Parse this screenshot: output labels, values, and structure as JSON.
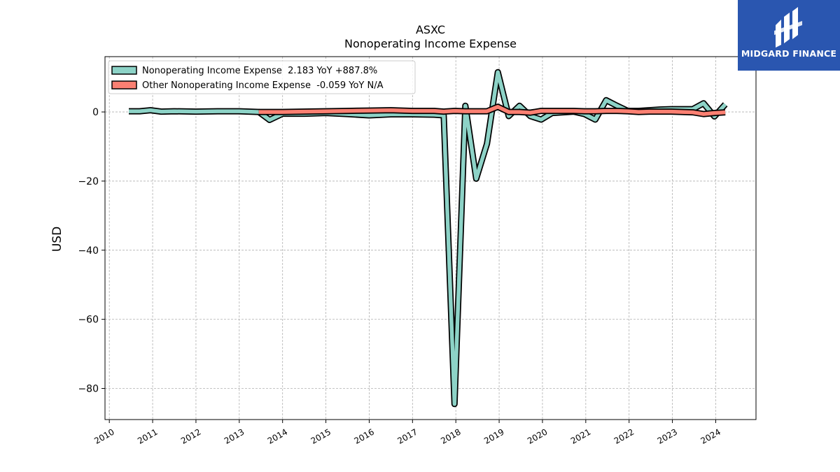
{
  "chart_data": {
    "type": "line",
    "title": "ASXC",
    "subtitle": "Nonoperating Income Expense",
    "ylabel": "USD",
    "xlabel": "",
    "xlim": [
      2009.9,
      2024.93
    ],
    "ylim": [
      -89,
      16
    ],
    "yticks": [
      0,
      -20,
      -40,
      -60,
      -80
    ],
    "ytick_labels": [
      "0",
      "−20",
      "−40",
      "−60",
      "−80"
    ],
    "xticks": [
      2010,
      2011,
      2012,
      2013,
      2014,
      2015,
      2016,
      2017,
      2018,
      2019,
      2020,
      2021,
      2022,
      2023,
      2024
    ],
    "xtick_labels": [
      "2010",
      "2011",
      "2012",
      "2013",
      "2014",
      "2015",
      "2016",
      "2017",
      "2018",
      "2019",
      "2020",
      "2021",
      "2022",
      "2023",
      "2024"
    ],
    "grid": true,
    "legend_position": "top-left",
    "series": [
      {
        "name": "Nonoperating Income Expense",
        "legend_label": "Nonoperating Income Expense  2.183 YoY +887.8%",
        "color": "#8dd3c7",
        "x": [
          2010.45,
          2010.7,
          2010.95,
          2011.2,
          2011.5,
          2012,
          2012.5,
          2013,
          2013.45,
          2013.7,
          2014.0,
          2014.5,
          2015,
          2015.5,
          2016,
          2016.5,
          2017,
          2017.5,
          2017.72,
          2017.97,
          2018.22,
          2018.47,
          2018.72,
          2018.97,
          2019.22,
          2019.47,
          2019.72,
          2019.97,
          2020.22,
          2020.47,
          2020.72,
          2020.97,
          2021.22,
          2021.47,
          2021.72,
          2021.97,
          2022.22,
          2022.47,
          2022.72,
          2022.97,
          2023.22,
          2023.47,
          2023.72,
          2023.97,
          2024.22
        ],
        "values": [
          0.2,
          0.2,
          0.5,
          0.1,
          0.2,
          0.1,
          0.2,
          0.2,
          0.0,
          -2.3,
          -0.5,
          -0.5,
          -0.3,
          -0.6,
          -1.0,
          -0.7,
          -0.7,
          -0.8,
          -1.0,
          -84.5,
          1.8,
          -19.3,
          -9.2,
          11.5,
          -1.2,
          1.8,
          -1.2,
          -2.2,
          -0.3,
          -0.1,
          0.1,
          -0.6,
          -2.2,
          3.4,
          1.8,
          0.3,
          0.3,
          0.5,
          0.7,
          0.8,
          0.8,
          0.8,
          2.5,
          -1.3,
          2.2
        ]
      },
      {
        "name": "Other Nonoperating Income Expense",
        "legend_label": "Other Nonoperating Income Expense  -0.059 YoY N/A",
        "color": "#fb8072",
        "x": [
          2013.45,
          2014.0,
          2014.5,
          2015,
          2015.5,
          2016,
          2016.5,
          2017,
          2017.5,
          2017.72,
          2017.97,
          2018.22,
          2018.47,
          2018.72,
          2018.97,
          2019.22,
          2019.47,
          2019.72,
          2019.97,
          2020.22,
          2020.47,
          2020.72,
          2020.97,
          2021.22,
          2021.47,
          2021.72,
          2021.97,
          2022.22,
          2022.47,
          2022.72,
          2022.97,
          2023.22,
          2023.47,
          2023.72,
          2023.97,
          2024.22
        ],
        "values": [
          0.0,
          0.0,
          0.1,
          0.2,
          0.3,
          0.4,
          0.5,
          0.3,
          0.3,
          0.1,
          0.3,
          0.2,
          0.2,
          0.2,
          1.5,
          0.0,
          0.0,
          -0.2,
          0.3,
          0.3,
          0.3,
          0.3,
          0.2,
          0.2,
          0.3,
          0.3,
          0.2,
          0.0,
          0.1,
          0.1,
          0.1,
          0.0,
          -0.1,
          -0.6,
          -0.3,
          -0.1
        ]
      }
    ]
  },
  "logo": {
    "text": "MIDGARD FINANCE",
    "background": "#2a56b0",
    "icon": "midgard-logo-icon"
  }
}
